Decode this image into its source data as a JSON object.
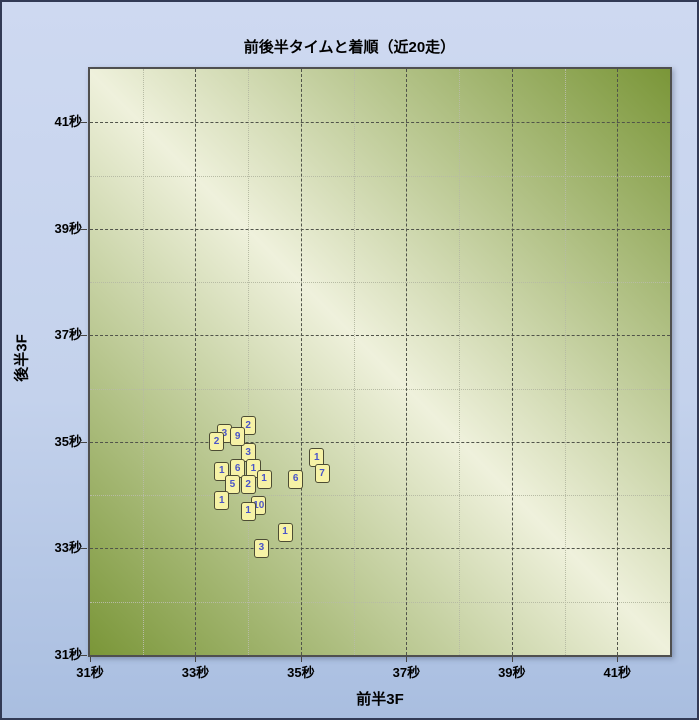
{
  "chart_data": {
    "type": "scatter",
    "title": "前後半タイムと着順（近20走）",
    "xlabel": "前半3F",
    "ylabel": "後半3F",
    "xlim": [
      31,
      42
    ],
    "ylim": [
      31,
      42
    ],
    "x_ticks": {
      "values": [
        31,
        33,
        35,
        37,
        39,
        41
      ],
      "labels": [
        "31秒",
        "33秒",
        "35秒",
        "37秒",
        "39秒",
        "41秒"
      ]
    },
    "y_ticks": {
      "values": [
        31,
        33,
        35,
        37,
        39,
        41
      ],
      "labels": [
        "31秒",
        "33秒",
        "35秒",
        "37秒",
        "39秒",
        "41秒"
      ]
    },
    "grid": {
      "major_lines": [
        33,
        35,
        37,
        39,
        41
      ],
      "minor_lines": [
        32,
        34,
        36,
        38,
        40
      ],
      "major_style": "dashed",
      "minor_style": "dotted"
    },
    "legend": "none",
    "points": [
      {
        "x": 33.55,
        "y": 35.15,
        "label": "3"
      },
      {
        "x": 34.0,
        "y": 35.3,
        "label": "2"
      },
      {
        "x": 34.0,
        "y": 34.8,
        "label": "3"
      },
      {
        "x": 33.8,
        "y": 35.1,
        "label": "9"
      },
      {
        "x": 33.4,
        "y": 35.0,
        "label": "2"
      },
      {
        "x": 34.1,
        "y": 34.5,
        "label": "1"
      },
      {
        "x": 33.5,
        "y": 34.45,
        "label": "1"
      },
      {
        "x": 33.8,
        "y": 34.5,
        "label": "6"
      },
      {
        "x": 34.3,
        "y": 34.3,
        "label": "1"
      },
      {
        "x": 33.7,
        "y": 34.2,
        "label": "5"
      },
      {
        "x": 34.0,
        "y": 34.2,
        "label": "2"
      },
      {
        "x": 33.5,
        "y": 33.9,
        "label": "1"
      },
      {
        "x": 34.2,
        "y": 33.8,
        "label": "10"
      },
      {
        "x": 34.0,
        "y": 33.7,
        "label": "1"
      },
      {
        "x": 34.9,
        "y": 34.3,
        "label": "6"
      },
      {
        "x": 35.3,
        "y": 34.7,
        "label": "1"
      },
      {
        "x": 35.4,
        "y": 34.4,
        "label": "7"
      },
      {
        "x": 34.7,
        "y": 33.3,
        "label": "1"
      },
      {
        "x": 34.25,
        "y": 33.0,
        "label": "3"
      }
    ]
  },
  "colors": {
    "canvas_border": "#323a55",
    "canvas_bg_top": "#ced9f1",
    "canvas_bg_mid": "#c4d2ec",
    "canvas_bg_bottom": "#a9bee0",
    "plot_border": "#4f4f4f",
    "plot_corner_dark": "#7a9638",
    "plot_diagonal_light": "#eff1dc",
    "grid_major": "#51544a",
    "grid_minor": "#b7bba4",
    "tag_fill": "#f6f2a6",
    "tag_border": "#4c4c34",
    "tag_text": "#4a55c8",
    "text": "#000000"
  }
}
